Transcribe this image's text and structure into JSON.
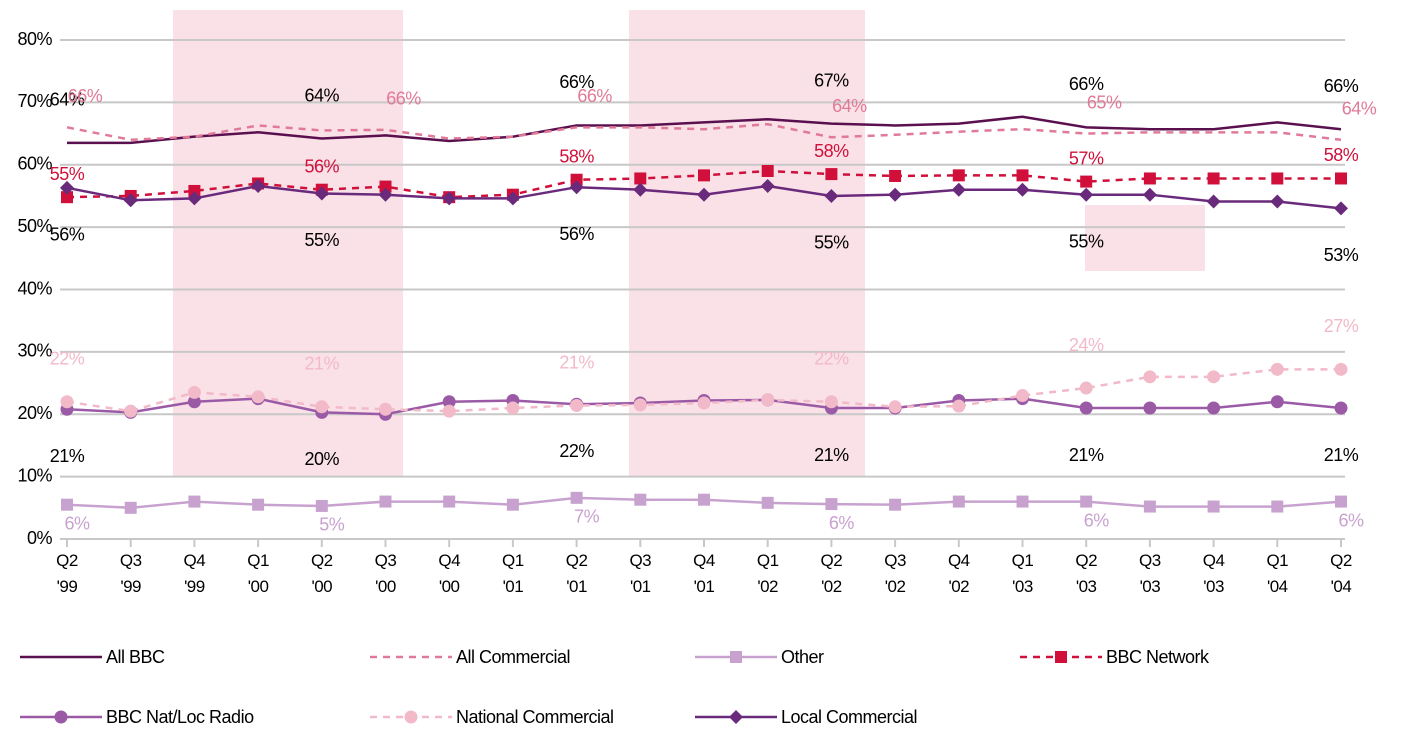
{
  "chart_data": {
    "type": "line",
    "categories": [
      "Q2\n'99",
      "Q3\n'99",
      "Q4\n'99",
      "Q1\n'00",
      "Q2\n'00",
      "Q3\n'00",
      "Q4\n'00",
      "Q1\n'01",
      "Q2\n'01",
      "Q3\n'01",
      "Q4\n'01",
      "Q1\n'02",
      "Q2\n'02",
      "Q3\n'02",
      "Q4\n'02",
      "Q1\n'03",
      "Q2\n'03",
      "Q3\n'03",
      "Q4\n'03",
      "Q1\n'04",
      "Q2\n'04"
    ],
    "ylim": [
      0,
      80
    ],
    "yticks": [
      {
        "value": 0,
        "label": "0%"
      },
      {
        "value": 10,
        "label": "10%"
      },
      {
        "value": 20,
        "label": "20%"
      },
      {
        "value": 30,
        "label": "30%"
      },
      {
        "value": 40,
        "label": "40%"
      },
      {
        "value": 50,
        "label": "50%"
      },
      {
        "value": 60,
        "label": "60%"
      },
      {
        "value": 70,
        "label": "70%"
      },
      {
        "value": 80,
        "label": "80%"
      }
    ],
    "grid": true,
    "series": [
      {
        "name": "All BBC",
        "color": "#5a0f4e",
        "dash": false,
        "marker": "none",
        "label_color": "#000000",
        "label_position": "above-far",
        "values": [
          63.5,
          63.5,
          64.5,
          65.2,
          64.2,
          64.7,
          63.8,
          64.5,
          66.3,
          66.3,
          66.8,
          67.3,
          66.6,
          66.3,
          66.6,
          67.7,
          66,
          65.7,
          65.7,
          66.8,
          65.7
        ],
        "value_labels": [
          "64%",
          null,
          null,
          null,
          "64%",
          null,
          null,
          null,
          "66%",
          null,
          null,
          null,
          "67%",
          null,
          null,
          null,
          "66%",
          null,
          null,
          null,
          "66%"
        ]
      },
      {
        "name": "All Commercial",
        "color": "#e07a98",
        "dash": true,
        "marker": "none",
        "label_color": "#e07a98",
        "label_position": "above-right",
        "values": [
          66,
          64,
          64.5,
          66.3,
          65.5,
          65.6,
          64.2,
          64.5,
          66,
          66,
          65.7,
          66.5,
          64.4,
          64.8,
          65.3,
          65.7,
          65,
          65.2,
          65.2,
          65.2,
          64
        ],
        "value_labels": [
          "66%",
          null,
          null,
          null,
          null,
          "66%",
          null,
          null,
          "66%",
          null,
          null,
          null,
          "64%",
          null,
          null,
          null,
          "65%",
          null,
          null,
          null,
          "64%"
        ]
      },
      {
        "name": "Other",
        "color": "#c8a2cf",
        "dash": false,
        "marker": "square",
        "label_color": "#c8a2cf",
        "label_position": "below",
        "values": [
          5.5,
          5,
          6,
          5.5,
          5.3,
          6,
          6,
          5.5,
          6.6,
          6.3,
          6.3,
          5.8,
          5.6,
          5.5,
          6,
          6,
          6,
          5.2,
          5.2,
          5.2,
          6
        ],
        "value_labels": [
          "6%",
          null,
          null,
          null,
          "5%",
          null,
          null,
          null,
          "7%",
          null,
          null,
          null,
          "6%",
          null,
          null,
          null,
          "6%",
          null,
          null,
          null,
          "6%"
        ]
      },
      {
        "name": "BBC Network",
        "color": "#d0103a",
        "dash": true,
        "marker": "square",
        "label_color": "#d0103a",
        "label_position": "above",
        "values": [
          54.8,
          55,
          55.8,
          57,
          56,
          56.5,
          54.8,
          55.2,
          57.6,
          57.8,
          58.3,
          59,
          58.5,
          58.2,
          58.3,
          58.3,
          57.3,
          57.8,
          57.8,
          57.8,
          57.8
        ],
        "value_labels": [
          "55%",
          null,
          null,
          null,
          "56%",
          null,
          null,
          null,
          "58%",
          null,
          null,
          null,
          "58%",
          null,
          null,
          null,
          "57%",
          null,
          null,
          null,
          "58%"
        ]
      },
      {
        "name": "BBC Nat/Loc Radio",
        "color": "#9b5aa6",
        "dash": false,
        "marker": "circle",
        "label_color": "#000000",
        "label_position": "below-far",
        "values": [
          20.8,
          20.3,
          22,
          22.5,
          20.3,
          20,
          22,
          22.2,
          21.6,
          21.8,
          22.2,
          22.3,
          21,
          21,
          22.2,
          22.5,
          21,
          21,
          21,
          22,
          21
        ],
        "value_labels": [
          "21%",
          null,
          null,
          null,
          "20%",
          null,
          null,
          null,
          "22%",
          null,
          null,
          null,
          "21%",
          null,
          null,
          null,
          "21%",
          null,
          null,
          null,
          "21%"
        ]
      },
      {
        "name": "National Commercial",
        "color": "#f2b9c9",
        "dash": true,
        "marker": "circle",
        "label_color": "#f2b9c9",
        "label_position": "above-far",
        "values": [
          22,
          20.5,
          23.5,
          22.8,
          21.2,
          20.8,
          20.5,
          21,
          21.4,
          21.5,
          21.8,
          22.3,
          22,
          21.2,
          21.3,
          23,
          24.2,
          26,
          26,
          27.2,
          27.2
        ],
        "value_labels": [
          "22%",
          null,
          null,
          null,
          "21%",
          null,
          null,
          null,
          "21%",
          null,
          null,
          null,
          "22%",
          null,
          null,
          null,
          "24%",
          null,
          null,
          null,
          "27%"
        ]
      },
      {
        "name": "Local Commercial",
        "color": "#6a2a7c",
        "dash": false,
        "marker": "diamond",
        "label_color": "#000000",
        "label_position": "below-far",
        "values": [
          56.3,
          54.3,
          54.6,
          56.6,
          55.4,
          55.2,
          54.6,
          54.6,
          56.4,
          56,
          55.2,
          56.6,
          55,
          55.2,
          56,
          56,
          55.2,
          55.2,
          54.1,
          54.1,
          53
        ],
        "value_labels": [
          "56%",
          null,
          null,
          null,
          "55%",
          null,
          null,
          null,
          "56%",
          null,
          null,
          null,
          "55%",
          null,
          null,
          null,
          "55%",
          null,
          null,
          null,
          "53%"
        ]
      }
    ]
  }
}
